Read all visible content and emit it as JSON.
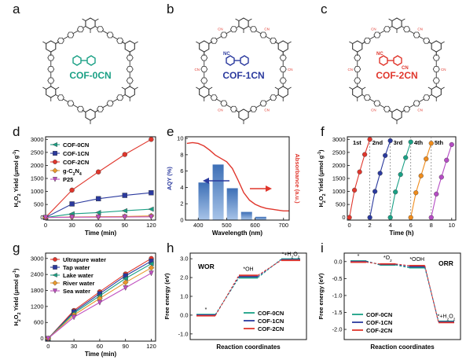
{
  "panel_letters": [
    "a",
    "b",
    "c",
    "d",
    "e",
    "f",
    "g",
    "h",
    "i"
  ],
  "structures": [
    {
      "label": "COF-0CN",
      "color": "#1aa085",
      "substituent": ""
    },
    {
      "label": "COF-1CN",
      "color": "#2b3a9e",
      "substituent": "NC"
    },
    {
      "label": "COF-2CN",
      "color": "#e0362c",
      "substituent": "NC",
      "substituent2": "CN"
    }
  ],
  "colors": {
    "cof0": "#1aa085",
    "cof1": "#2b3a9e",
    "cof2": "#e0362c",
    "gc3n4": "#e8972a",
    "p25": "#c050c0",
    "absorb": "#e0362c",
    "aqy_bar": "#3d6fb6"
  },
  "chart_data": [
    {
      "id": "d",
      "type": "line",
      "xlabel": "Time (min)",
      "ylabel": "H2O2 Yield (μmol g-1)",
      "xticks": [
        0,
        30,
        60,
        90,
        120
      ],
      "yticks": [
        0,
        500,
        1000,
        1500,
        2000,
        2500,
        3000
      ],
      "xlim": [
        0,
        125
      ],
      "ylim": [
        -100,
        3100
      ],
      "legend_position": "top-left",
      "series": [
        {
          "name": "COF-0CN",
          "marker": "triangle-left",
          "x": [
            0,
            30,
            60,
            90,
            120
          ],
          "y": [
            0,
            140,
            190,
            260,
            320
          ]
        },
        {
          "name": "COF-1CN",
          "marker": "square",
          "x": [
            0,
            30,
            60,
            90,
            120
          ],
          "y": [
            0,
            520,
            720,
            850,
            950
          ]
        },
        {
          "name": "COF-2CN",
          "marker": "circle",
          "x": [
            0,
            30,
            60,
            90,
            120
          ],
          "y": [
            0,
            1050,
            1750,
            2420,
            3000
          ]
        },
        {
          "name": "g-C3N4",
          "marker": "diamond",
          "x": [
            0,
            30,
            60,
            90,
            120
          ],
          "y": [
            0,
            20,
            30,
            40,
            60
          ]
        },
        {
          "name": "P25",
          "marker": "triangle-down",
          "x": [
            0,
            30,
            60,
            90,
            120
          ],
          "y": [
            0,
            10,
            15,
            20,
            25
          ]
        }
      ]
    },
    {
      "id": "e",
      "type": "bar+line",
      "xlabel": "Wavelength (nm)",
      "ylabel": "AQY (%)",
      "y2label": "Absorbance (a.u.)",
      "xticks": [
        400,
        500,
        600,
        700
      ],
      "yticks": [
        0,
        2,
        4,
        6,
        8,
        10
      ],
      "xlim": [
        355,
        720
      ],
      "ylim": [
        0,
        10.2
      ],
      "bars": {
        "x": [
          420,
          470,
          520,
          570,
          620
        ],
        "values": [
          4.6,
          6.8,
          3.9,
          1.0,
          0.4
        ]
      },
      "absorbance": {
        "x": [
          360,
          380,
          400,
          420,
          440,
          460,
          480,
          500,
          520,
          540,
          560,
          580,
          600,
          620,
          640,
          660,
          680,
          700,
          720
        ],
        "y": [
          0.92,
          0.93,
          0.92,
          0.89,
          0.84,
          0.78,
          0.74,
          0.7,
          0.62,
          0.48,
          0.33,
          0.24,
          0.19,
          0.16,
          0.14,
          0.13,
          0.12,
          0.11,
          0.11
        ]
      }
    },
    {
      "id": "f",
      "type": "line",
      "xlabel": "Time (h)",
      "ylabel": "H2O2 Yield (μmol g-1)",
      "xticks": [
        0,
        2,
        4,
        6,
        8,
        10
      ],
      "yticks": [
        0,
        500,
        1000,
        1500,
        2000,
        2500,
        3000
      ],
      "xlim": [
        -0.2,
        10.4
      ],
      "ylim": [
        -100,
        3100
      ],
      "cycle_labels": [
        "1st",
        "2nd",
        "3rd",
        "4th",
        "5th"
      ],
      "dividers": [
        2,
        4,
        6,
        8
      ],
      "series": [
        {
          "name": "1st",
          "color": "#e0362c",
          "x": [
            0,
            0.5,
            1,
            1.5,
            2
          ],
          "y": [
            0,
            1050,
            1750,
            2420,
            3000
          ]
        },
        {
          "name": "2nd",
          "color": "#2b3a9e",
          "x": [
            2,
            2.5,
            3,
            3.5,
            4
          ],
          "y": [
            0,
            1000,
            1700,
            2380,
            2950
          ]
        },
        {
          "name": "3rd",
          "color": "#1aa085",
          "x": [
            4,
            4.5,
            5,
            5.5,
            6
          ],
          "y": [
            0,
            980,
            1650,
            2300,
            2900
          ]
        },
        {
          "name": "4th",
          "color": "#f08c1c",
          "x": [
            6,
            6.5,
            7,
            7.5,
            8
          ],
          "y": [
            0,
            950,
            1600,
            2250,
            2850
          ]
        },
        {
          "name": "5th",
          "color": "#b54cc4",
          "x": [
            8,
            8.5,
            9,
            9.5,
            10
          ],
          "y": [
            0,
            900,
            1550,
            2200,
            2800
          ]
        }
      ]
    },
    {
      "id": "g",
      "type": "line",
      "xlabel": "Time (min)",
      "ylabel": "H2O2 Yield (μmol g-1)",
      "xticks": [
        0,
        30,
        60,
        90,
        120
      ],
      "yticks": [
        0,
        600,
        1200,
        1800,
        2400,
        3000
      ],
      "xlim": [
        -3,
        125
      ],
      "ylim": [
        -100,
        3200
      ],
      "series": [
        {
          "name": "Ultrapure water",
          "color": "#e0362c",
          "marker": "circle",
          "x": [
            0,
            30,
            60,
            90,
            120
          ],
          "y": [
            0,
            1050,
            1750,
            2420,
            3000
          ]
        },
        {
          "name": "Tap water",
          "color": "#2b3a9e",
          "marker": "square",
          "x": [
            0,
            30,
            60,
            90,
            120
          ],
          "y": [
            0,
            1000,
            1680,
            2350,
            2900
          ]
        },
        {
          "name": "Lake water",
          "color": "#1aa085",
          "marker": "triangle-left",
          "x": [
            0,
            30,
            60,
            90,
            120
          ],
          "y": [
            0,
            950,
            1600,
            2250,
            2800
          ]
        },
        {
          "name": "River water",
          "color": "#e8972a",
          "marker": "diamond",
          "x": [
            0,
            30,
            60,
            90,
            120
          ],
          "y": [
            0,
            880,
            1500,
            2100,
            2650
          ]
        },
        {
          "name": "Sea water",
          "color": "#c050c0",
          "marker": "triangle-down",
          "x": [
            0,
            30,
            60,
            90,
            120
          ],
          "y": [
            0,
            800,
            1350,
            1900,
            2450
          ]
        }
      ]
    },
    {
      "id": "h",
      "type": "energy-diagram",
      "title": "WOR",
      "xlabel": "Reaction coordinates",
      "ylabel": "Free energy (eV)",
      "yticks": [
        -1.0,
        0.0,
        1.0,
        2.0,
        3.0
      ],
      "ylim": [
        -1.3,
        3.3
      ],
      "states": [
        "*",
        "*OH",
        "*+H2O2"
      ],
      "series": [
        {
          "name": "COF-0CN",
          "color": "#1aa085",
          "energies": [
            0.0,
            1.95,
            2.95
          ]
        },
        {
          "name": "COF-1CN",
          "color": "#2b3a9e",
          "energies": [
            0.0,
            2.05,
            2.95
          ]
        },
        {
          "name": "COF-2CN",
          "color": "#e0362c",
          "energies": [
            0.0,
            2.15,
            2.95
          ]
        }
      ]
    },
    {
      "id": "i",
      "type": "energy-diagram",
      "title": "ORR",
      "xlabel": "Reaction coordinates",
      "ylabel": "Free energy (eV)",
      "yticks": [
        -2.0,
        -1.5,
        -1.0,
        -0.5,
        0.0
      ],
      "ylim": [
        -2.3,
        0.25
      ],
      "states": [
        "*",
        "*O2",
        "*OOH",
        "*+H2O2"
      ],
      "series": [
        {
          "name": "COF-0CN",
          "color": "#1aa085",
          "energies": [
            0.0,
            -0.12,
            -0.2,
            -1.78
          ]
        },
        {
          "name": "COF-1CN",
          "color": "#2b3a9e",
          "energies": [
            0.0,
            -0.08,
            -0.15,
            -1.78
          ]
        },
        {
          "name": "COF-2CN",
          "color": "#e0362c",
          "energies": [
            0.0,
            -0.05,
            -0.1,
            -1.78
          ]
        }
      ]
    }
  ]
}
